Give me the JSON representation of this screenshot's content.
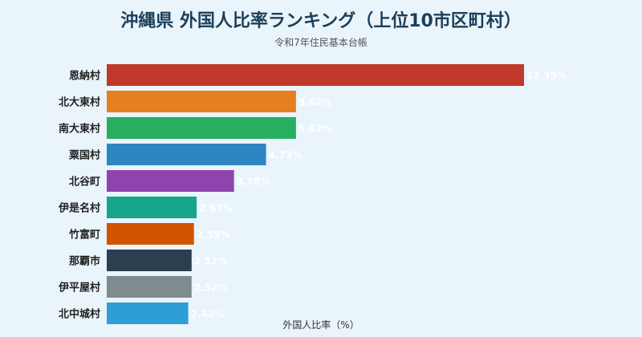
{
  "chart_data": {
    "type": "bar",
    "orientation": "horizontal",
    "title": "沖縄県 外国人比率ランキング（上位10市区町村）",
    "subtitle": "令和7年住民基本台帳",
    "xlabel": "外国人比率（%）",
    "categories": [
      "恩納村",
      "北大東村",
      "南大東村",
      "粟国村",
      "北谷町",
      "伊是名村",
      "竹富町",
      "那覇市",
      "伊平屋村",
      "北中城村"
    ],
    "values": [
      12.39,
      5.62,
      5.62,
      4.73,
      3.78,
      2.67,
      2.59,
      2.52,
      2.52,
      2.42
    ],
    "value_labels": [
      "12.39%",
      "5.62%",
      "5.62%",
      "4.73%",
      "3.78%",
      "2.67%",
      "2.59%",
      "2.52%",
      "2.52%",
      "2.42%"
    ],
    "colors": [
      "#c0392b",
      "#e67e22",
      "#27ae60",
      "#2e86c1",
      "#8e44ad",
      "#17a589",
      "#d35400",
      "#2c3e50",
      "#7f8c8d",
      "#2e9fd6"
    ],
    "xlim": [
      0,
      13.5
    ],
    "grid": false,
    "legend": "none"
  }
}
